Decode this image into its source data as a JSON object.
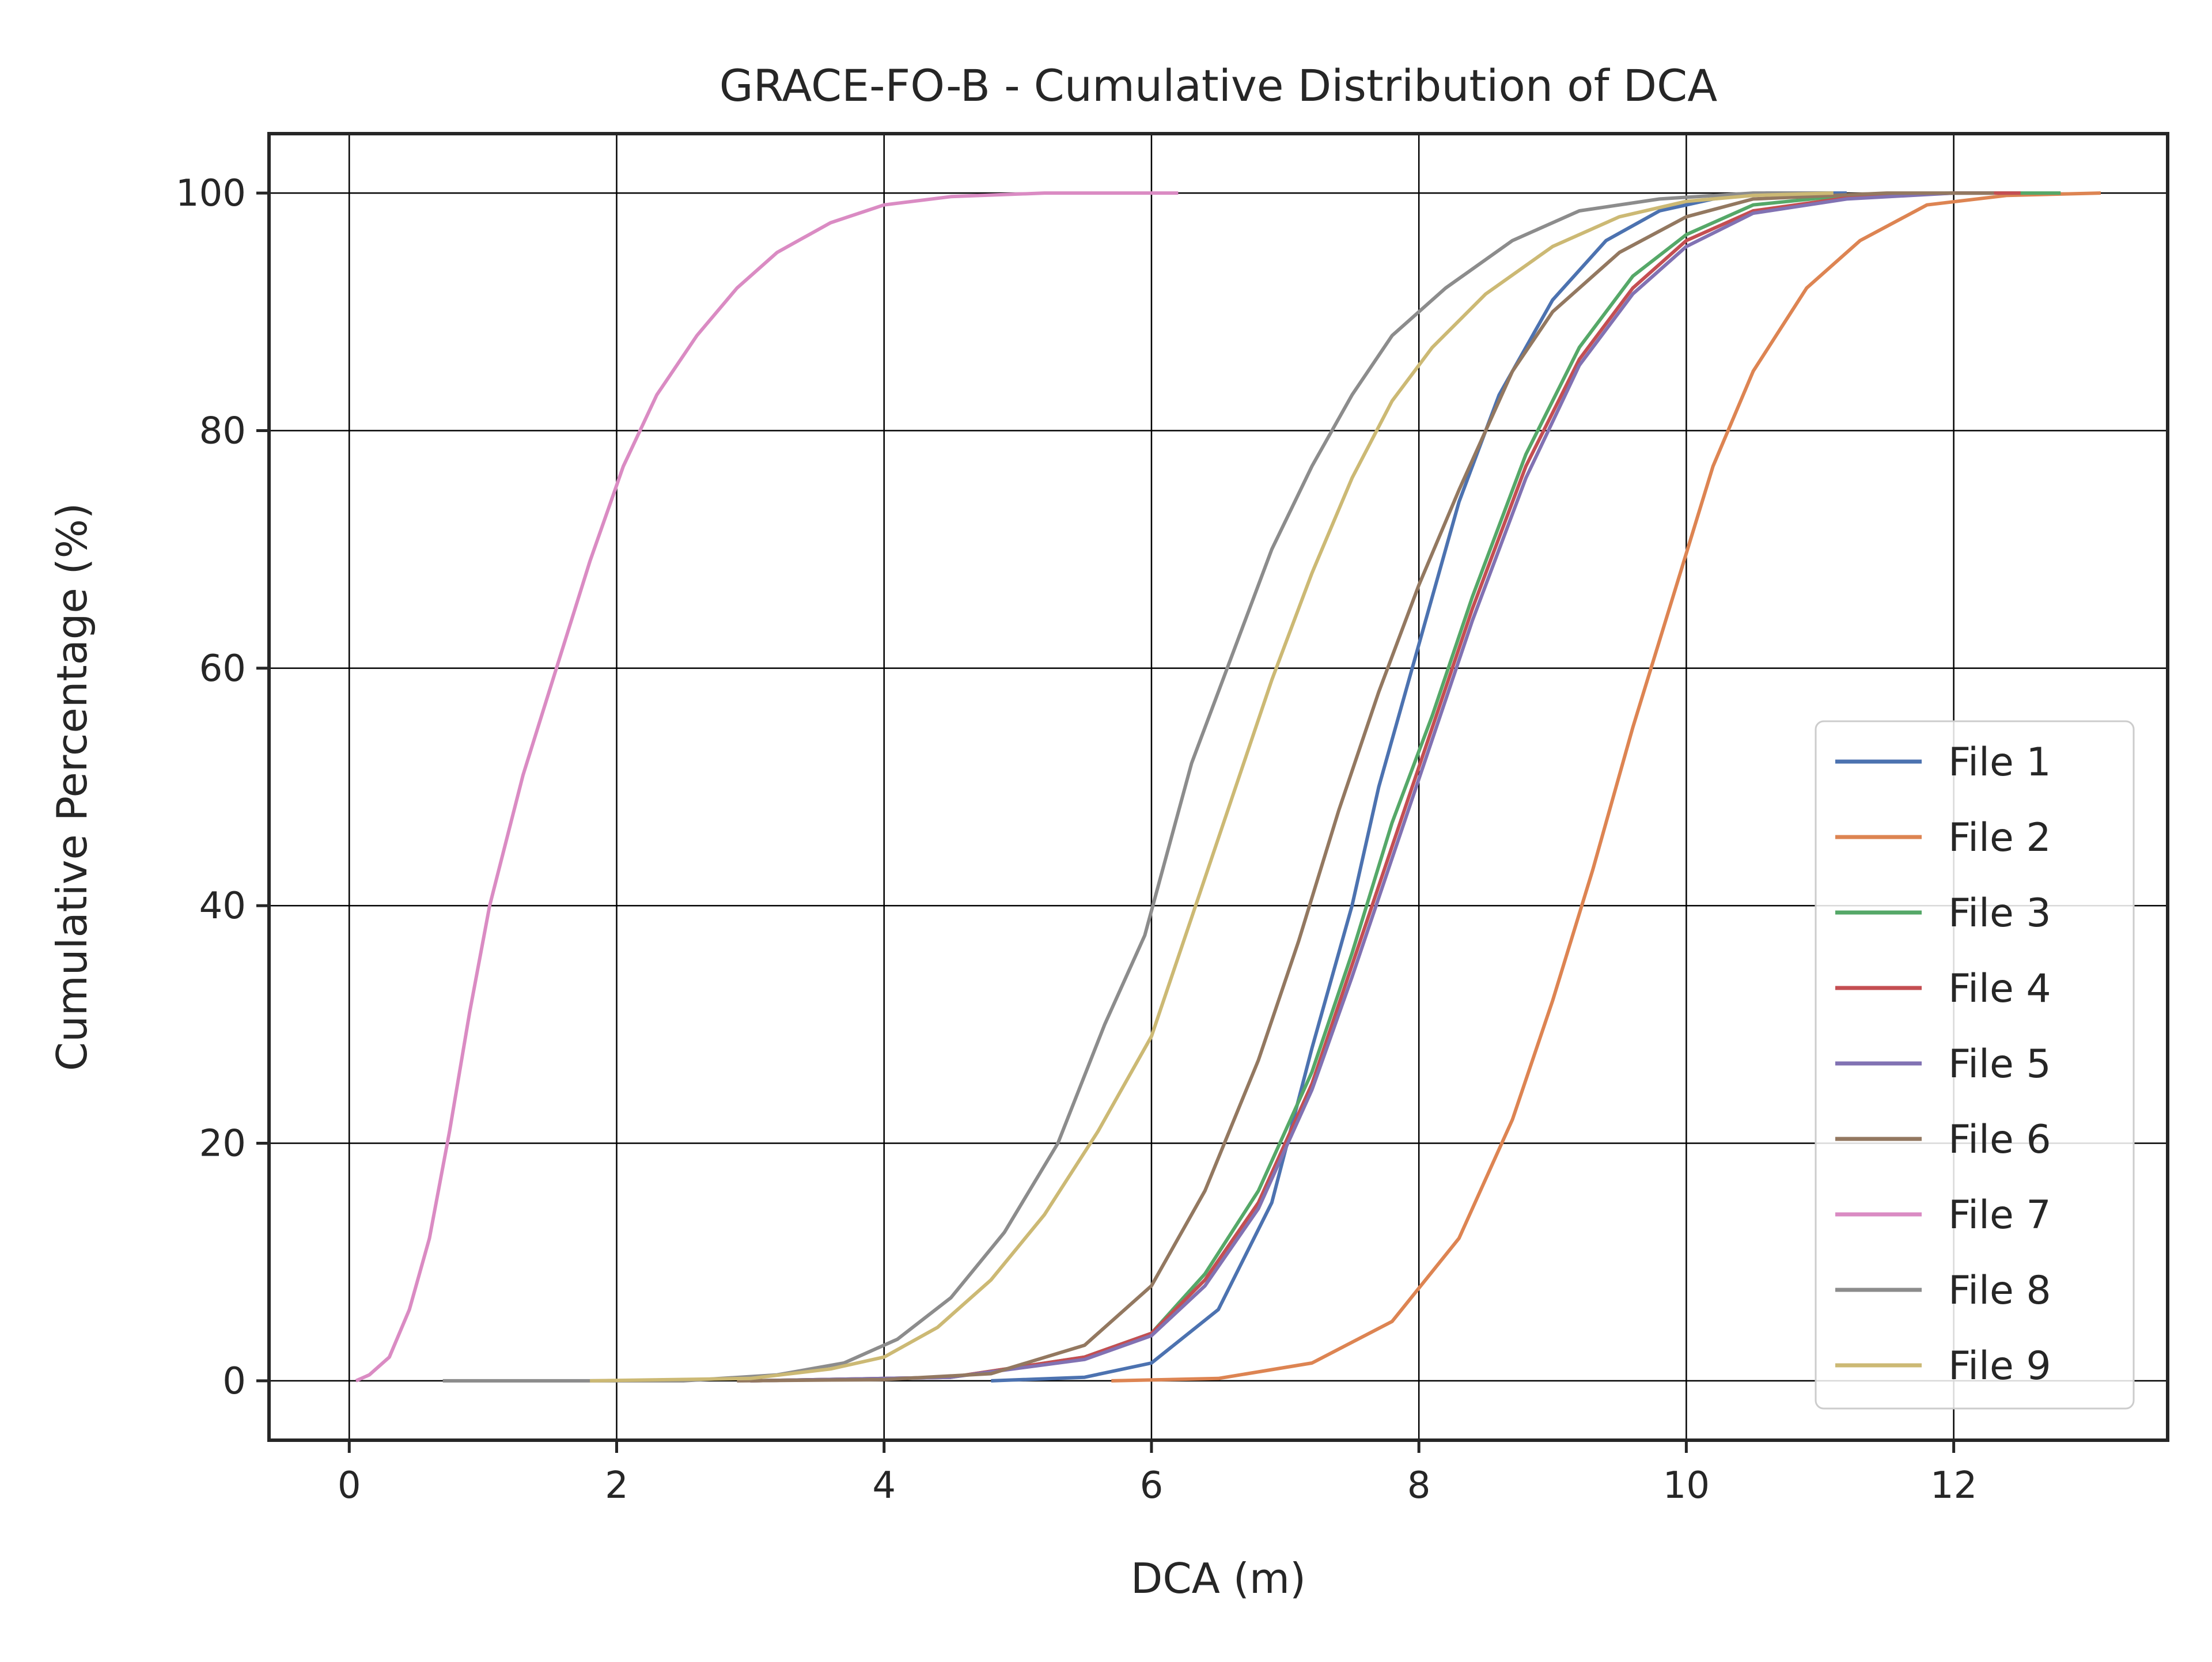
{
  "chart_data": {
    "type": "line",
    "title": "GRACE-FO-B - Cumulative Distribution of DCA",
    "xlabel": "DCA (m)",
    "ylabel": "Cumulative Percentage (%)",
    "xlim": [
      -0.6,
      13.6
    ],
    "ylim": [
      -5,
      105
    ],
    "xticks": [
      0,
      2,
      4,
      6,
      8,
      10,
      12
    ],
    "yticks": [
      0,
      20,
      40,
      60,
      80,
      100
    ],
    "xtick_labels": [
      "0",
      "2",
      "4",
      "6",
      "8",
      "10",
      "12"
    ],
    "ytick_labels": [
      "0",
      "20",
      "40",
      "60",
      "80",
      "100"
    ],
    "grid": true,
    "legend_position": "lower-right",
    "series": [
      {
        "name": "File 1",
        "color": "#4c72b0",
        "points": [
          [
            4.8,
            0
          ],
          [
            5.5,
            0.3
          ],
          [
            6.0,
            1.5
          ],
          [
            6.5,
            6
          ],
          [
            6.9,
            15
          ],
          [
            7.2,
            28
          ],
          [
            7.5,
            40
          ],
          [
            7.7,
            50
          ],
          [
            7.9,
            58
          ],
          [
            8.1,
            66
          ],
          [
            8.3,
            74
          ],
          [
            8.6,
            83
          ],
          [
            9.0,
            91
          ],
          [
            9.4,
            96
          ],
          [
            9.8,
            98.5
          ],
          [
            10.2,
            99.5
          ],
          [
            10.6,
            100
          ],
          [
            11.2,
            100
          ]
        ]
      },
      {
        "name": "File 2",
        "color": "#dd8452",
        "points": [
          [
            5.7,
            0
          ],
          [
            6.5,
            0.2
          ],
          [
            7.2,
            1.5
          ],
          [
            7.8,
            5
          ],
          [
            8.3,
            12
          ],
          [
            8.7,
            22
          ],
          [
            9.0,
            32
          ],
          [
            9.3,
            43
          ],
          [
            9.6,
            55
          ],
          [
            9.9,
            66
          ],
          [
            10.2,
            77
          ],
          [
            10.5,
            85
          ],
          [
            10.9,
            92
          ],
          [
            11.3,
            96
          ],
          [
            11.8,
            99
          ],
          [
            12.4,
            99.8
          ],
          [
            13.1,
            100
          ]
        ]
      },
      {
        "name": "File 3",
        "color": "#55a868",
        "points": [
          [
            3.0,
            0
          ],
          [
            4.5,
            0.3
          ],
          [
            5.5,
            2
          ],
          [
            6.0,
            4
          ],
          [
            6.4,
            9
          ],
          [
            6.8,
            16
          ],
          [
            7.2,
            26
          ],
          [
            7.5,
            36
          ],
          [
            7.8,
            47
          ],
          [
            8.1,
            56
          ],
          [
            8.4,
            66
          ],
          [
            8.8,
            78
          ],
          [
            9.2,
            87
          ],
          [
            9.6,
            93
          ],
          [
            10.0,
            96.5
          ],
          [
            10.5,
            99
          ],
          [
            11.2,
            99.8
          ],
          [
            12.0,
            100
          ],
          [
            12.8,
            100
          ]
        ]
      },
      {
        "name": "File 4",
        "color": "#c44e52",
        "points": [
          [
            3.0,
            0
          ],
          [
            4.5,
            0.3
          ],
          [
            5.5,
            2
          ],
          [
            6.0,
            4
          ],
          [
            6.4,
            8.5
          ],
          [
            6.8,
            15
          ],
          [
            7.2,
            25
          ],
          [
            7.5,
            35
          ],
          [
            7.8,
            45
          ],
          [
            8.1,
            55
          ],
          [
            8.4,
            65
          ],
          [
            8.8,
            77
          ],
          [
            9.2,
            86
          ],
          [
            9.6,
            92
          ],
          [
            10.0,
            96
          ],
          [
            10.5,
            98.5
          ],
          [
            11.2,
            99.6
          ],
          [
            12.0,
            100
          ],
          [
            12.5,
            100
          ]
        ]
      },
      {
        "name": "File 5",
        "color": "#8172b3",
        "points": [
          [
            3.0,
            0
          ],
          [
            4.5,
            0.3
          ],
          [
            5.5,
            1.8
          ],
          [
            6.0,
            3.8
          ],
          [
            6.4,
            8
          ],
          [
            6.8,
            14.5
          ],
          [
            7.2,
            24.5
          ],
          [
            7.5,
            34
          ],
          [
            7.8,
            44
          ],
          [
            8.1,
            54
          ],
          [
            8.4,
            64
          ],
          [
            8.8,
            76
          ],
          [
            9.2,
            85.5
          ],
          [
            9.6,
            91.5
          ],
          [
            10.0,
            95.5
          ],
          [
            10.5,
            98.3
          ],
          [
            11.2,
            99.5
          ],
          [
            12.0,
            100
          ],
          [
            12.3,
            100
          ]
        ]
      },
      {
        "name": "File 6",
        "color": "#937860",
        "points": [
          [
            2.9,
            0
          ],
          [
            4.0,
            0.1
          ],
          [
            4.8,
            0.6
          ],
          [
            5.5,
            3
          ],
          [
            6.0,
            8
          ],
          [
            6.4,
            16
          ],
          [
            6.8,
            27
          ],
          [
            7.1,
            37
          ],
          [
            7.4,
            48
          ],
          [
            7.7,
            58
          ],
          [
            8.0,
            67
          ],
          [
            8.3,
            75
          ],
          [
            8.7,
            85
          ],
          [
            9.0,
            90
          ],
          [
            9.5,
            95
          ],
          [
            10.0,
            98
          ],
          [
            10.5,
            99.5
          ],
          [
            11.5,
            100
          ],
          [
            12.3,
            100
          ]
        ]
      },
      {
        "name": "File 7",
        "color": "#da8bc3",
        "points": [
          [
            0.05,
            0
          ],
          [
            0.15,
            0.5
          ],
          [
            0.3,
            2
          ],
          [
            0.45,
            6
          ],
          [
            0.6,
            12
          ],
          [
            0.75,
            21
          ],
          [
            0.9,
            31
          ],
          [
            1.05,
            40
          ],
          [
            1.3,
            51
          ],
          [
            1.55,
            60
          ],
          [
            1.8,
            69
          ],
          [
            2.05,
            77
          ],
          [
            2.3,
            83
          ],
          [
            2.6,
            88
          ],
          [
            2.9,
            92
          ],
          [
            3.2,
            95
          ],
          [
            3.6,
            97.5
          ],
          [
            4.0,
            99
          ],
          [
            4.5,
            99.7
          ],
          [
            5.2,
            100
          ],
          [
            6.2,
            100
          ]
        ]
      },
      {
        "name": "File 8",
        "color": "#8c8c8c",
        "points": [
          [
            0.7,
            0
          ],
          [
            2.5,
            0
          ],
          [
            3.2,
            0.5
          ],
          [
            3.7,
            1.5
          ],
          [
            4.1,
            3.5
          ],
          [
            4.5,
            7
          ],
          [
            4.9,
            12.5
          ],
          [
            5.3,
            20
          ],
          [
            5.65,
            30
          ],
          [
            5.95,
            37.5
          ],
          [
            6.3,
            52
          ],
          [
            6.6,
            61
          ],
          [
            6.9,
            70
          ],
          [
            7.2,
            77
          ],
          [
            7.5,
            83
          ],
          [
            7.8,
            88
          ],
          [
            8.2,
            92
          ],
          [
            8.7,
            96
          ],
          [
            9.2,
            98.5
          ],
          [
            9.8,
            99.5
          ],
          [
            10.5,
            100
          ],
          [
            11.1,
            100
          ]
        ]
      },
      {
        "name": "File 9",
        "color": "#ccb974",
        "points": [
          [
            1.8,
            0
          ],
          [
            3.0,
            0.2
          ],
          [
            3.6,
            1
          ],
          [
            4.0,
            2
          ],
          [
            4.4,
            4.5
          ],
          [
            4.8,
            8.5
          ],
          [
            5.2,
            14
          ],
          [
            5.6,
            21
          ],
          [
            6.0,
            29
          ],
          [
            6.3,
            39
          ],
          [
            6.6,
            49
          ],
          [
            6.9,
            59
          ],
          [
            7.2,
            68
          ],
          [
            7.5,
            76
          ],
          [
            7.8,
            82.5
          ],
          [
            8.1,
            87
          ],
          [
            8.5,
            91.5
          ],
          [
            9.0,
            95.5
          ],
          [
            9.5,
            98
          ],
          [
            10.0,
            99.3
          ],
          [
            10.5,
            99.8
          ],
          [
            11.1,
            100
          ]
        ]
      }
    ]
  }
}
